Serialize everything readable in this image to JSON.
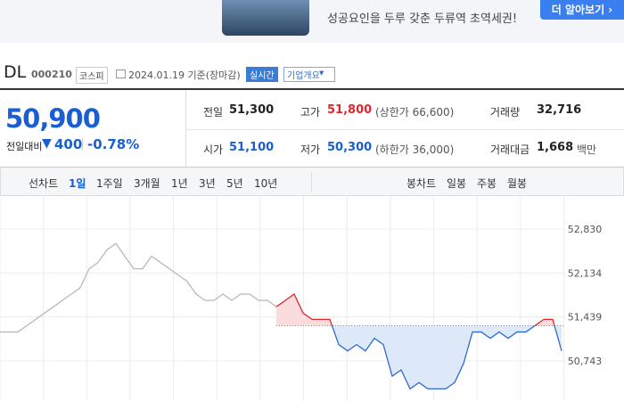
{
  "banner": {
    "text": "성공요인을 두루 갖춘 두류역 초역세권!",
    "button": "더 알아보기 ›"
  },
  "header": {
    "name": "DL",
    "code": "000210",
    "market": "코스피",
    "date": "2024.01.19 기준(장마감)",
    "badge": "실시간",
    "menu": "기업개요"
  },
  "price": {
    "now": "50,900",
    "change_label": "전일대비",
    "change": "400",
    "rate": "-0.78%"
  },
  "stats": {
    "rows": [
      [
        {
          "label": "전일",
          "value": "51,300"
        },
        {
          "label": "고가",
          "value": "51,800",
          "note": "(상한가 66,600)"
        },
        {
          "label": "거래량",
          "value": "32,716"
        }
      ],
      [
        {
          "label": "시가",
          "value": "51,100"
        },
        {
          "label": "저가",
          "value": "50,300",
          "note": "(하한가 36,000)"
        },
        {
          "label": "거래대금",
          "value": "1,668",
          "note": "백만"
        }
      ]
    ]
  },
  "tabs": {
    "line_label": "선차트",
    "line": [
      "1일",
      "1주일",
      "3개월",
      "1년",
      "3년",
      "5년",
      "10년"
    ],
    "candle_label": "봉차트",
    "candle": [
      "일봉",
      "주봉",
      "월봉"
    ]
  },
  "chart_data": {
    "type": "line",
    "baseline": 51300,
    "ylim": [
      50108,
      53281
    ],
    "yticks": [
      {
        "value": 52830,
        "label": "52,830"
      },
      {
        "value": 52134,
        "label": "52,134"
      },
      {
        "value": 51439,
        "label": "51,439"
      },
      {
        "value": 50743,
        "label": "50,743"
      }
    ],
    "series": [
      {
        "color": "#b8b8b8",
        "values": [
          51200,
          51200,
          51200,
          51300,
          51400,
          51500,
          51600,
          51700,
          51800,
          51900,
          52200,
          52300,
          52500,
          52600,
          52400,
          52200,
          52200,
          52400,
          52300,
          52200,
          52100,
          52000,
          51800,
          51700,
          51700,
          51800,
          51700,
          51800,
          51800,
          51700,
          51700,
          51600,
          null,
          null,
          null,
          null,
          null,
          null,
          null,
          null,
          null,
          null,
          null,
          null,
          null,
          null,
          null,
          null,
          null,
          null,
          null,
          null,
          null,
          null,
          null,
          null,
          null,
          null,
          null,
          null,
          null,
          null,
          null,
          null
        ]
      },
      {
        "color": "#2e6bd1",
        "up_color": "#e3262b",
        "values": [
          null,
          null,
          null,
          null,
          null,
          null,
          null,
          null,
          null,
          null,
          null,
          null,
          null,
          null,
          null,
          null,
          null,
          null,
          null,
          null,
          null,
          null,
          null,
          null,
          null,
          null,
          null,
          null,
          null,
          null,
          null,
          51600,
          51700,
          51800,
          51500,
          51400,
          51400,
          51400,
          51000,
          50900,
          51000,
          50900,
          51100,
          51000,
          50500,
          50600,
          50300,
          50400,
          50300,
          50300,
          50300,
          50400,
          50700,
          51200,
          51200,
          51100,
          51200,
          51100,
          51200,
          51200,
          51300,
          51400,
          51400,
          50900
        ]
      }
    ]
  }
}
